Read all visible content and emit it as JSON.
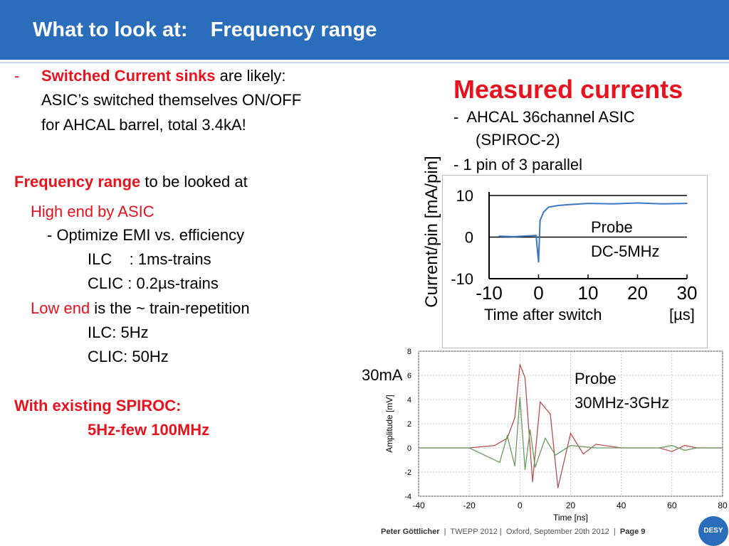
{
  "header": {
    "title": "What to look at:    Frequency range"
  },
  "left": {
    "bullet_dash": "-",
    "sinks_bold": "Switched Current sinks",
    "sinks_rest": " are likely:",
    "line2": "ASIC’s switched themselves ON/OFF",
    "line3": "for AHCAL barrel, total 3.4kA!",
    "freq_bold": "Frequency range",
    "freq_rest": " to be looked at",
    "high_end": "High end by ASIC",
    "optimize": "- Optimize EMI vs. efficiency",
    "ilc_trains": "ILC    : 1ms-trains",
    "clic_trains": "CLIC : 0.2µs-trains",
    "low_end_red": "Low end",
    "low_end_rest": " is the ~ train-repetition",
    "ilc_hz": "ILC: 5Hz",
    "clic_hz": "CLIC: 50Hz",
    "spiroc": "With existing SPIROC:",
    "spiroc_range": "5Hz-few 100MHz"
  },
  "right": {
    "measured": "Measured currents",
    "ahcal": "-  AHCAL 36channel ASIC",
    "spiroc2": "(SPIROC-2)",
    "pin": "- 1 pin of 3 parallel",
    "ylabel_current": "Current/pin [mA/pin]",
    "probe_label_1": "Probe",
    "probe_label_1b": "DC-5MHz",
    "time_after_switch": "Time after switch",
    "us_unit": "[µs]",
    "label_30ma": "30mA",
    "probe_label_2": "Probe",
    "probe_label_2b": "30MHz-3GHz"
  },
  "footer": {
    "author": "Peter Göttlicher",
    "rest": "  |  TWEPP 2012 |  Oxford, September 20th 2012  |  ",
    "page": "Page 9",
    "logo": "DESY"
  },
  "colors": {
    "header": "#2a6ebb",
    "accent_red": "#e8121e",
    "trace_blue": "#3a78c0",
    "trace_red": "#b5504e",
    "trace_green": "#6a9a5f"
  },
  "chart_data": [
    {
      "type": "line",
      "xlim": [
        -10,
        30
      ],
      "ylim": [
        -10,
        10
      ],
      "x_ticks": [
        -10,
        0,
        10,
        20,
        30
      ],
      "y_ticks": [
        10,
        0,
        -10
      ],
      "ylabel": "Current/pin [mA/pin]",
      "xlabel": "Time after switch",
      "x_unit": "[µs]",
      "series": [
        {
          "name": "",
          "color": "#3a78c0",
          "x": [
            -8,
            -5,
            -2,
            -0.5,
            0,
            0.3,
            1,
            2,
            4,
            6,
            10,
            15,
            20,
            25,
            30
          ],
          "y": [
            0.2,
            0.1,
            0.3,
            0.4,
            -6,
            4,
            6,
            7.2,
            7.6,
            7.8,
            8.1,
            8.0,
            8.2,
            8.0,
            8.1
          ]
        }
      ]
    },
    {
      "type": "line",
      "xlim": [
        -40,
        80
      ],
      "ylim": [
        -4,
        8
      ],
      "x_ticks": [
        -40,
        -20,
        0,
        20,
        40,
        60,
        80
      ],
      "y_ticks": [
        8,
        6,
        4,
        2,
        0,
        -2,
        -4
      ],
      "xlabel": "Time [ns]",
      "ylabel": "Amplitude [mV]",
      "series": [
        {
          "name": "",
          "color": "#b5504e",
          "x": [
            -40,
            -20,
            -10,
            -5,
            -2,
            0,
            2,
            5,
            8,
            12,
            15,
            20,
            25,
            30,
            40,
            55,
            60,
            65,
            70,
            80
          ],
          "y": [
            0,
            0,
            0.2,
            0.8,
            2.5,
            6.9,
            5.8,
            -2.8,
            3.8,
            2.8,
            -3.3,
            1.2,
            -0.5,
            0.3,
            0,
            0,
            -0.3,
            0.2,
            0,
            0
          ]
        },
        {
          "name": "",
          "color": "#6a9a5f",
          "x": [
            -40,
            -20,
            -12,
            -8,
            -5,
            -2,
            0,
            2,
            4,
            6,
            10,
            14,
            20,
            30,
            40,
            55,
            60,
            65,
            70,
            80
          ],
          "y": [
            0,
            0,
            -0.8,
            -1.2,
            1.0,
            -1.5,
            4.2,
            -1.8,
            1.5,
            -1.6,
            0.8,
            -0.6,
            0.2,
            0,
            0,
            0,
            0.2,
            -0.2,
            0,
            0
          ]
        }
      ]
    }
  ]
}
